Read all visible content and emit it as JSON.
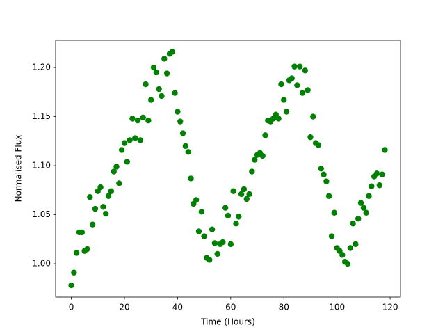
{
  "chart_data": {
    "type": "scatter",
    "xlabel": "Time (Hours)",
    "ylabel": "Normalised Flux",
    "color": "#008000",
    "x": [
      0,
      1,
      2,
      3,
      4,
      5,
      6,
      7,
      8,
      9,
      10,
      11,
      12,
      13,
      14,
      15,
      16,
      17,
      18,
      19,
      20,
      21,
      22,
      23,
      24,
      25,
      26,
      27,
      28,
      29,
      30,
      31,
      32,
      33,
      34,
      35,
      36,
      37,
      38,
      39,
      40,
      41,
      42,
      43,
      44,
      45,
      46,
      47,
      48,
      49,
      50,
      51,
      52,
      53,
      54,
      55,
      56,
      57,
      58,
      59,
      60,
      61,
      62,
      63,
      64,
      65,
      66,
      67,
      68,
      69,
      70,
      71,
      72,
      73,
      74,
      75,
      76,
      77,
      78,
      79,
      80,
      81,
      82,
      83,
      84,
      85,
      86,
      87,
      88,
      89,
      90,
      91,
      92,
      93,
      94,
      95,
      96,
      97,
      98,
      99,
      100,
      101,
      102,
      103,
      104,
      105,
      106,
      107,
      108,
      109,
      110,
      111,
      112,
      113,
      114,
      115,
      116,
      117,
      118
    ],
    "y": [
      0.978,
      0.991,
      1.011,
      1.032,
      1.032,
      1.013,
      1.015,
      1.068,
      1.04,
      1.056,
      1.074,
      1.078,
      1.058,
      1.051,
      1.069,
      1.074,
      1.094,
      1.099,
      1.082,
      1.116,
      1.123,
      1.104,
      1.126,
      1.148,
      1.128,
      1.146,
      1.126,
      1.149,
      1.183,
      1.146,
      1.167,
      1.2,
      1.195,
      1.178,
      1.171,
      1.209,
      1.194,
      1.214,
      1.216,
      1.174,
      1.155,
      1.145,
      1.133,
      1.12,
      1.114,
      1.087,
      1.061,
      1.065,
      1.033,
      1.053,
      1.028,
      1.006,
      1.004,
      1.035,
      1.021,
      1.01,
      1.02,
      1.022,
      1.057,
      1.049,
      1.02,
      1.074,
      1.041,
      1.048,
      1.071,
      1.076,
      1.066,
      1.071,
      1.094,
      1.106,
      1.111,
      1.113,
      1.11,
      1.131,
      1.146,
      1.145,
      1.148,
      1.152,
      1.148,
      1.183,
      1.167,
      1.155,
      1.187,
      1.189,
      1.201,
      1.182,
      1.201,
      1.174,
      1.197,
      1.177,
      1.129,
      1.15,
      1.123,
      1.121,
      1.097,
      1.091,
      1.084,
      1.069,
      1.028,
      1.052,
      1.016,
      1.013,
      1.009,
      1.002,
      1.0,
      1.016,
      1.041,
      1.02,
      1.046,
      1.062,
      1.057,
      1.052,
      1.069,
      1.079,
      1.089,
      1.092,
      1.08,
      1.091,
      1.116
    ],
    "xlim": [
      -5.9,
      123.9
    ],
    "ylim": [
      0.966,
      1.2277
    ],
    "xticks": [
      0,
      20,
      40,
      60,
      80,
      100,
      120
    ],
    "yticks": [
      {
        "value": 1.0,
        "label": "1.00"
      },
      {
        "value": 1.05,
        "label": "1.05"
      },
      {
        "value": 1.1,
        "label": "1.10"
      },
      {
        "value": 1.15,
        "label": "1.15"
      },
      {
        "value": 1.2,
        "label": "1.20"
      }
    ]
  }
}
